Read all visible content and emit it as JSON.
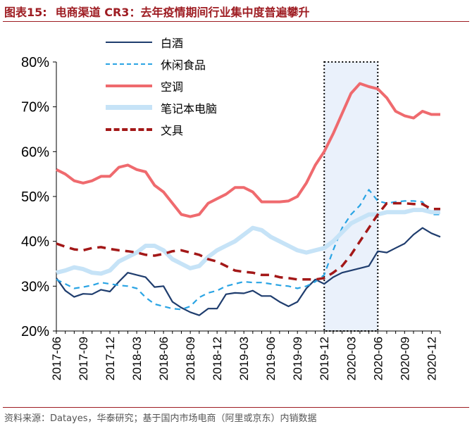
{
  "figure": {
    "number": "图表15:",
    "title": "电商渠道 CR3：去年疫情期间行业集中度普遍攀升",
    "source": "资料来源：Datayes，华泰研究；基于国内市场电商（阿里或京东）内销数据"
  },
  "chart_data": {
    "type": "line",
    "title": "",
    "xlabel": "",
    "ylabel": "",
    "ylim": [
      20,
      80
    ],
    "yticks": [
      "20%",
      "30%",
      "40%",
      "50%",
      "60%",
      "70%",
      "80%"
    ],
    "x": [
      "2017-06",
      "2017-07",
      "2017-08",
      "2017-09",
      "2017-10",
      "2017-11",
      "2017-12",
      "2018-01",
      "2018-02",
      "2018-03",
      "2018-04",
      "2018-05",
      "2018-06",
      "2018-07",
      "2018-08",
      "2018-09",
      "2018-10",
      "2018-11",
      "2018-12",
      "2019-01",
      "2019-02",
      "2019-03",
      "2019-04",
      "2019-05",
      "2019-06",
      "2019-07",
      "2019-08",
      "2019-09",
      "2019-10",
      "2019-11",
      "2019-12",
      "2020-01",
      "2020-02",
      "2020-03",
      "2020-04",
      "2020-05",
      "2020-06",
      "2020-07",
      "2020-08",
      "2020-09",
      "2020-10",
      "2020-11",
      "2020-12",
      "2021-01"
    ],
    "xtick_labels": [
      "2017-06",
      "2017-09",
      "2017-12",
      "2018-03",
      "2018-06",
      "2018-09",
      "2018-12",
      "2019-03",
      "2019-06",
      "2019-09",
      "2019-12",
      "2020-03",
      "2020-06",
      "2020-09",
      "2020-12"
    ],
    "highlight": {
      "from": "2019-12",
      "to": "2020-06"
    },
    "legend_position": "top-left",
    "series": [
      {
        "name": "白酒",
        "color": "#1f3d6e",
        "dash": "solid",
        "values": [
          31.8,
          29.0,
          27.6,
          28.3,
          28.2,
          29.2,
          28.8,
          31.0,
          33.0,
          32.5,
          32.0,
          29.8,
          30.0,
          26.5,
          25.2,
          24.2,
          23.5,
          25.0,
          25.0,
          28.2,
          28.5,
          28.4,
          29.0,
          27.8,
          27.8,
          26.5,
          25.5,
          26.5,
          29.5,
          31.5,
          30.5,
          32.0,
          33.0,
          33.5,
          34.0,
          34.5,
          37.8,
          37.5,
          38.5,
          39.5,
          41.5,
          43.0,
          41.8,
          41.0
        ]
      },
      {
        "name": "休闲食品",
        "color": "#2aa4e4",
        "dash": "dashed",
        "values": [
          31.5,
          30.5,
          29.5,
          29.8,
          30.2,
          30.8,
          30.5,
          30.2,
          30.0,
          29.5,
          27.5,
          26.0,
          25.5,
          25.0,
          24.8,
          25.5,
          27.5,
          28.5,
          29.0,
          30.0,
          30.5,
          31.0,
          30.8,
          30.8,
          30.5,
          30.2,
          30.0,
          29.5,
          30.0,
          31.0,
          32.5,
          38.0,
          43.0,
          46.0,
          48.0,
          51.5,
          49.0,
          48.5,
          48.8,
          49.0,
          49.0,
          48.8,
          46.0,
          46.0
        ]
      },
      {
        "name": "空调",
        "color": "#ef6a6e",
        "dash": "solid",
        "values": [
          56.0,
          55.0,
          53.5,
          53.0,
          53.5,
          54.5,
          54.5,
          56.5,
          57.0,
          56.0,
          55.5,
          52.5,
          51.0,
          48.5,
          46.0,
          45.5,
          46.0,
          48.5,
          49.5,
          50.5,
          52.0,
          52.0,
          51.0,
          48.8,
          48.8,
          48.8,
          49.0,
          50.0,
          53.0,
          57.0,
          60.0,
          64.0,
          68.5,
          73.0,
          75.2,
          74.5,
          74.0,
          72.0,
          69.0,
          68.0,
          67.5,
          69.0,
          68.3,
          68.3
        ]
      },
      {
        "name": "笔记本电脑",
        "color": "#c6e3f7",
        "dash": "solid",
        "values": [
          33.0,
          33.5,
          34.2,
          33.8,
          33.0,
          32.8,
          33.5,
          35.5,
          36.5,
          37.5,
          39.0,
          39.0,
          38.0,
          36.0,
          35.0,
          34.0,
          34.5,
          36.5,
          38.0,
          39.0,
          40.0,
          41.5,
          43.0,
          42.5,
          41.0,
          40.0,
          39.0,
          38.0,
          37.5,
          38.0,
          38.5,
          40.0,
          42.0,
          44.0,
          45.0,
          46.0,
          46.0,
          46.5,
          46.5,
          46.5,
          47.0,
          47.0,
          46.5,
          46.5
        ]
      },
      {
        "name": "文具",
        "color": "#a31818",
        "dash": "dashed",
        "values": [
          39.5,
          38.8,
          38.2,
          38.0,
          38.5,
          38.7,
          38.3,
          38.0,
          37.8,
          37.5,
          37.0,
          36.8,
          37.2,
          37.8,
          38.0,
          37.5,
          37.0,
          36.0,
          35.5,
          34.5,
          33.5,
          33.2,
          33.0,
          32.5,
          32.5,
          32.0,
          31.8,
          31.5,
          31.5,
          31.5,
          31.8,
          33.0,
          34.5,
          37.0,
          40.0,
          43.0,
          46.0,
          48.5,
          48.5,
          48.5,
          48.3,
          48.3,
          47.2,
          47.2
        ]
      }
    ]
  }
}
